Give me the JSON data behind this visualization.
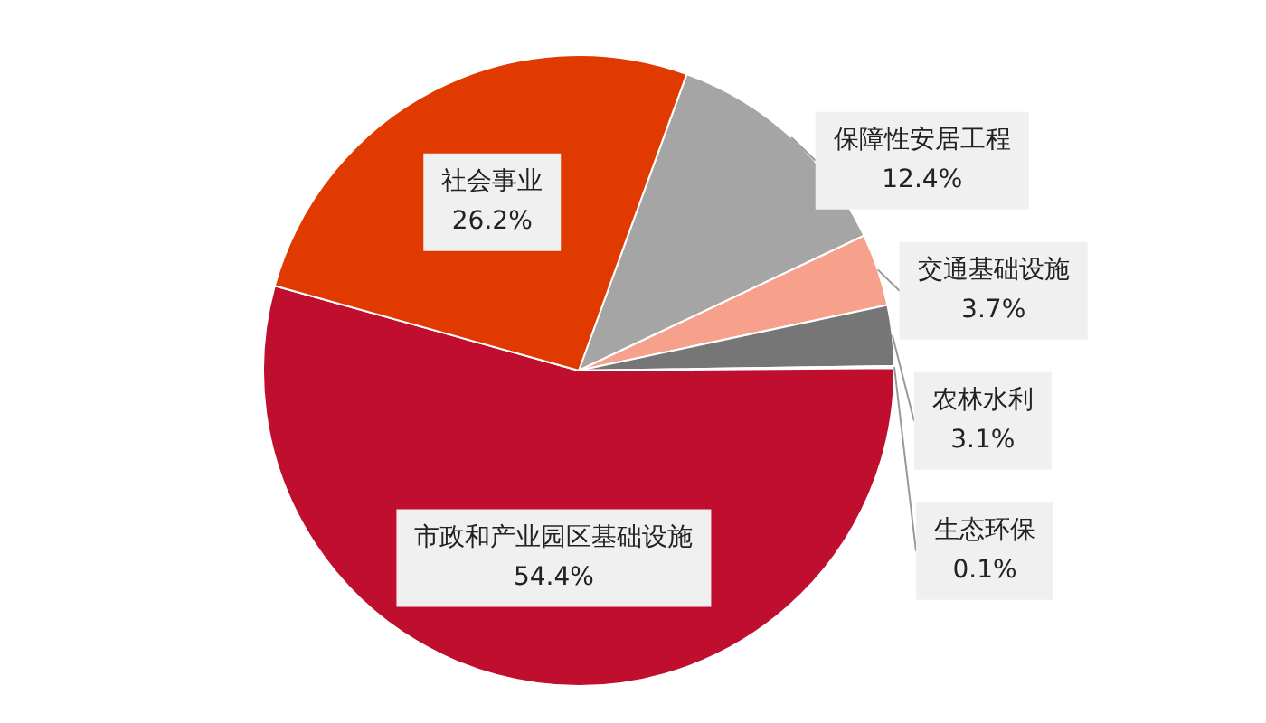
{
  "chart_data": {
    "type": "pie",
    "categories": [
      "保障性安居工程",
      "交通基础设施",
      "农林水利",
      "生态环保",
      "市政和产业园区基础设施",
      "社会事业"
    ],
    "values": [
      12.4,
      3.7,
      3.1,
      0.1,
      54.4,
      26.2
    ],
    "value_labels": [
      "12.4%",
      "3.7%",
      "3.1%",
      "0.1%",
      "54.4%",
      "26.2%"
    ],
    "colors": [
      "#a5a5a5",
      "#f7a08c",
      "#767676",
      "#c8c8c8",
      "#c00e2f",
      "#e03a00"
    ],
    "legend": false
  }
}
